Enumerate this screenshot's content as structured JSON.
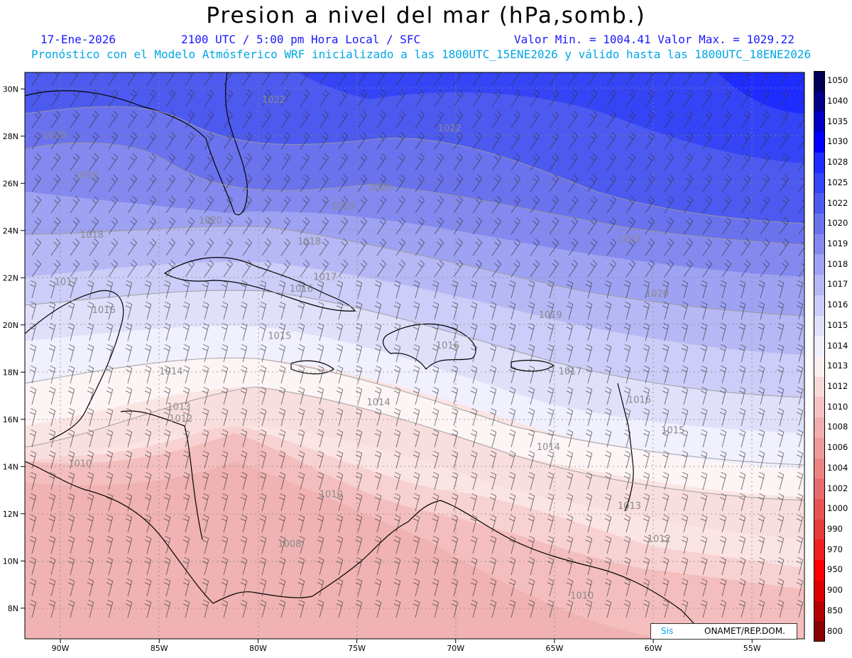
{
  "header": {
    "title": "Presion a nivel del mar (hPa,somb.)",
    "date": "17-Ene-2026",
    "time": "2100 UTC / 5:00 pm Hora Local / SFC",
    "min_max": "Valor Min. = 1004.41  Valor Max. = 1029.22",
    "forecast": "Pronóstico con el Modelo Atmósferico WRF inicializado a las 1800UTC_15ENE2026 y válido hasta las  1800UTC_18ENE2026"
  },
  "axes": {
    "lat_labels": [
      "30N",
      "28N",
      "26N",
      "24N",
      "22N",
      "20N",
      "18N",
      "16N",
      "14N",
      "12N",
      "10N",
      "8N"
    ],
    "lon_labels": [
      "90W",
      "85W",
      "80W",
      "75W",
      "70W",
      "65W",
      "60W",
      "55W"
    ]
  },
  "isobar_labels": [
    {
      "t": "1022",
      "lon": -79.8,
      "lat": 29.4
    },
    {
      "t": "1022",
      "lon": -70.9,
      "lat": 28.2
    },
    {
      "t": "1022",
      "lon": -61.8,
      "lat": 23.5
    },
    {
      "t": "1020",
      "lon": -90.9,
      "lat": 27.9
    },
    {
      "t": "1020",
      "lon": -74.4,
      "lat": 25.7
    },
    {
      "t": "1020",
      "lon": -83.0,
      "lat": 24.3
    },
    {
      "t": "1020",
      "lon": -60.4,
      "lat": 21.2
    },
    {
      "t": "1019",
      "lon": -89.3,
      "lat": 26.2
    },
    {
      "t": "1019",
      "lon": -76.3,
      "lat": 24.9
    },
    {
      "t": "1019",
      "lon": -65.8,
      "lat": 20.3
    },
    {
      "t": "1018",
      "lon": -89.0,
      "lat": 23.7
    },
    {
      "t": "1018",
      "lon": -78.0,
      "lat": 23.4
    },
    {
      "t": "1017",
      "lon": -90.3,
      "lat": 21.7
    },
    {
      "t": "1017",
      "lon": -77.2,
      "lat": 21.9
    },
    {
      "t": "1017",
      "lon": -64.8,
      "lat": 17.9
    },
    {
      "t": "1016",
      "lon": -88.4,
      "lat": 20.5
    },
    {
      "t": "1016",
      "lon": -78.4,
      "lat": 21.4
    },
    {
      "t": "1016",
      "lon": -71.0,
      "lat": 19.0
    },
    {
      "t": "1016",
      "lon": -61.3,
      "lat": 16.7
    },
    {
      "t": "1015",
      "lon": -79.5,
      "lat": 19.4
    },
    {
      "t": "1015",
      "lon": -59.6,
      "lat": 15.4
    },
    {
      "t": "1014",
      "lon": -85.0,
      "lat": 17.9
    },
    {
      "t": "1014",
      "lon": -74.5,
      "lat": 16.6
    },
    {
      "t": "1014",
      "lon": -65.9,
      "lat": 14.7
    },
    {
      "t": "1013",
      "lon": -84.6,
      "lat": 16.4
    },
    {
      "t": "1013",
      "lon": -61.8,
      "lat": 12.2
    },
    {
      "t": "1012",
      "lon": -84.5,
      "lat": 15.9
    },
    {
      "t": "1012",
      "lon": -60.3,
      "lat": 10.8
    },
    {
      "t": "1010",
      "lon": -89.6,
      "lat": 14.0
    },
    {
      "t": "1010",
      "lon": -76.9,
      "lat": 12.7
    },
    {
      "t": "1010",
      "lon": -64.2,
      "lat": 8.4
    },
    {
      "t": "1008",
      "lon": -79.0,
      "lat": 10.6
    }
  ],
  "legend": {
    "labels": [
      "1050",
      "1040",
      "1035",
      "1030",
      "1028",
      "1025",
      "1022",
      "1020",
      "1019",
      "1018",
      "1017",
      "1016",
      "1015",
      "1014",
      "1013",
      "1012",
      "1010",
      "1008",
      "1006",
      "1004",
      "1002",
      "1000",
      "990",
      "970",
      "950",
      "900",
      "850",
      "800"
    ],
    "colors": [
      "#000058",
      "#000088",
      "#0000c4",
      "#0000ff",
      "#1f2cff",
      "#3545f5",
      "#4d5af0",
      "#6a72ee",
      "#8489ef",
      "#9ea2f2",
      "#b6b8f5",
      "#cccdf8",
      "#e0e0fb",
      "#f1f1fe",
      "#fdf0f0",
      "#fad9d9",
      "#f6c3c3",
      "#f2aeae",
      "#ee9a9a",
      "#ec8383",
      "#ea6b6b",
      "#e85353",
      "#e83b3b",
      "#ee2020",
      "#ff0000",
      "#dd0000",
      "#b40000",
      "#880000"
    ]
  },
  "credit": {
    "left": "Sis",
    "right": "ONAMET/REP.DOM."
  }
}
